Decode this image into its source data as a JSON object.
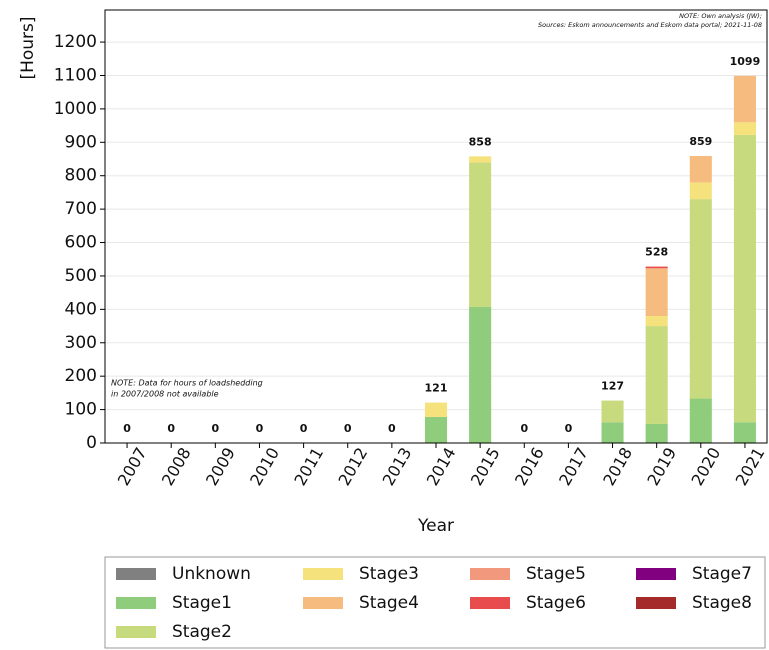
{
  "chart_data": {
    "type": "stacked_bar",
    "note_top": [
      "NOTE: Own analysis (JW);",
      "Sources: Eskom announcements and Eskom data portal; 2021-11-08"
    ],
    "note_left": [
      "NOTE: Data for hours of loadshedding",
      "in 2007/2008 not available"
    ],
    "x_label": "Year",
    "y_label": "[Hours]",
    "categories": [
      "2007",
      "2008",
      "2009",
      "2010",
      "2011",
      "2012",
      "2013",
      "2014",
      "2015",
      "2016",
      "2017",
      "2018",
      "2019",
      "2020",
      "2021"
    ],
    "totals": [
      0,
      0,
      0,
      0,
      0,
      0,
      0,
      121,
      858,
      0,
      0,
      127,
      528,
      859,
      1099
    ],
    "series": [
      {
        "name": "Unknown",
        "color": "#808080",
        "values": [
          0,
          0,
          0,
          0,
          0,
          0,
          0,
          0,
          0,
          0,
          0,
          0,
          0,
          0,
          0
        ]
      },
      {
        "name": "Stage1",
        "color": "#8fcc7c",
        "values": [
          0,
          0,
          0,
          0,
          0,
          0,
          0,
          78,
          407,
          0,
          0,
          62,
          57,
          133,
          62
        ]
      },
      {
        "name": "Stage2",
        "color": "#c8da7e",
        "values": [
          0,
          0,
          0,
          0,
          0,
          0,
          0,
          0,
          433,
          0,
          0,
          65,
          293,
          597,
          860
        ]
      },
      {
        "name": "Stage3",
        "color": "#f6e27c",
        "values": [
          0,
          0,
          0,
          0,
          0,
          0,
          0,
          43,
          18,
          0,
          0,
          0,
          30,
          50,
          38
        ]
      },
      {
        "name": "Stage4",
        "color": "#f6bb7e",
        "values": [
          0,
          0,
          0,
          0,
          0,
          0,
          0,
          0,
          0,
          0,
          0,
          0,
          143,
          79,
          139
        ]
      },
      {
        "name": "Stage5",
        "color": "#f2987c",
        "values": [
          0,
          0,
          0,
          0,
          0,
          0,
          0,
          0,
          0,
          0,
          0,
          0,
          0,
          0,
          0
        ]
      },
      {
        "name": "Stage6",
        "color": "#e84c4c",
        "values": [
          0,
          0,
          0,
          0,
          0,
          0,
          0,
          0,
          0,
          0,
          0,
          0,
          5,
          0,
          0
        ]
      },
      {
        "name": "Stage7",
        "color": "#800080",
        "values": [
          0,
          0,
          0,
          0,
          0,
          0,
          0,
          0,
          0,
          0,
          0,
          0,
          0,
          0,
          0
        ]
      },
      {
        "name": "Stage8",
        "color": "#a52a2a",
        "values": [
          0,
          0,
          0,
          0,
          0,
          0,
          0,
          0,
          0,
          0,
          0,
          0,
          0,
          0,
          0
        ]
      }
    ],
    "ylim": [
      0,
      1296
    ],
    "yticks": [
      0,
      100,
      200,
      300,
      400,
      500,
      600,
      700,
      800,
      900,
      1000,
      1100,
      1200
    ],
    "grid": true
  }
}
